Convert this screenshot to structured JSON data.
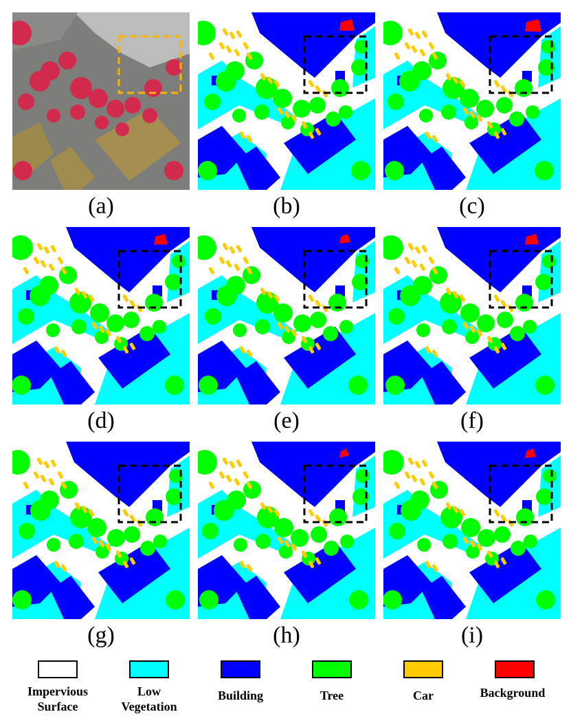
{
  "panels": [
    {
      "id": "a",
      "caption": "(a)",
      "kind": "photo"
    },
    {
      "id": "b",
      "caption": "(b)",
      "kind": "seg",
      "variant": 0
    },
    {
      "id": "c",
      "caption": "(c)",
      "kind": "seg",
      "variant": 1
    },
    {
      "id": "d",
      "caption": "(d)",
      "kind": "seg",
      "variant": 2
    },
    {
      "id": "e",
      "caption": "(e)",
      "kind": "seg",
      "variant": 3
    },
    {
      "id": "f",
      "caption": "(f)",
      "kind": "seg",
      "variant": 4
    },
    {
      "id": "g",
      "caption": "(g)",
      "kind": "seg",
      "variant": 5
    },
    {
      "id": "h",
      "caption": "(h)",
      "kind": "seg",
      "variant": 6
    },
    {
      "id": "i",
      "caption": "(i)",
      "kind": "seg",
      "variant": 7
    }
  ],
  "legend": [
    {
      "line1": "Impervious",
      "line2": "Surface",
      "color": "#ffffff"
    },
    {
      "line1": "Low",
      "line2": "Vegetation",
      "color": "#00ffff"
    },
    {
      "line1": "Building",
      "line2": "",
      "color": "#0000ff"
    },
    {
      "line1": "Tree",
      "line2": "",
      "color": "#00ff00"
    },
    {
      "line1": "Car",
      "line2": "",
      "color": "#ffcc00"
    },
    {
      "line1": "Background",
      "line2": "",
      "color": "#ff0000"
    }
  ],
  "colors": {
    "impervious": "#ffffff",
    "low_vegetation": "#00ffff",
    "building": "#0000ff",
    "tree": "#00ff00",
    "car": "#ffcc00",
    "background": "#ff0000",
    "highlight_box_photo": "#ffb300",
    "highlight_box_seg": "#000000"
  }
}
